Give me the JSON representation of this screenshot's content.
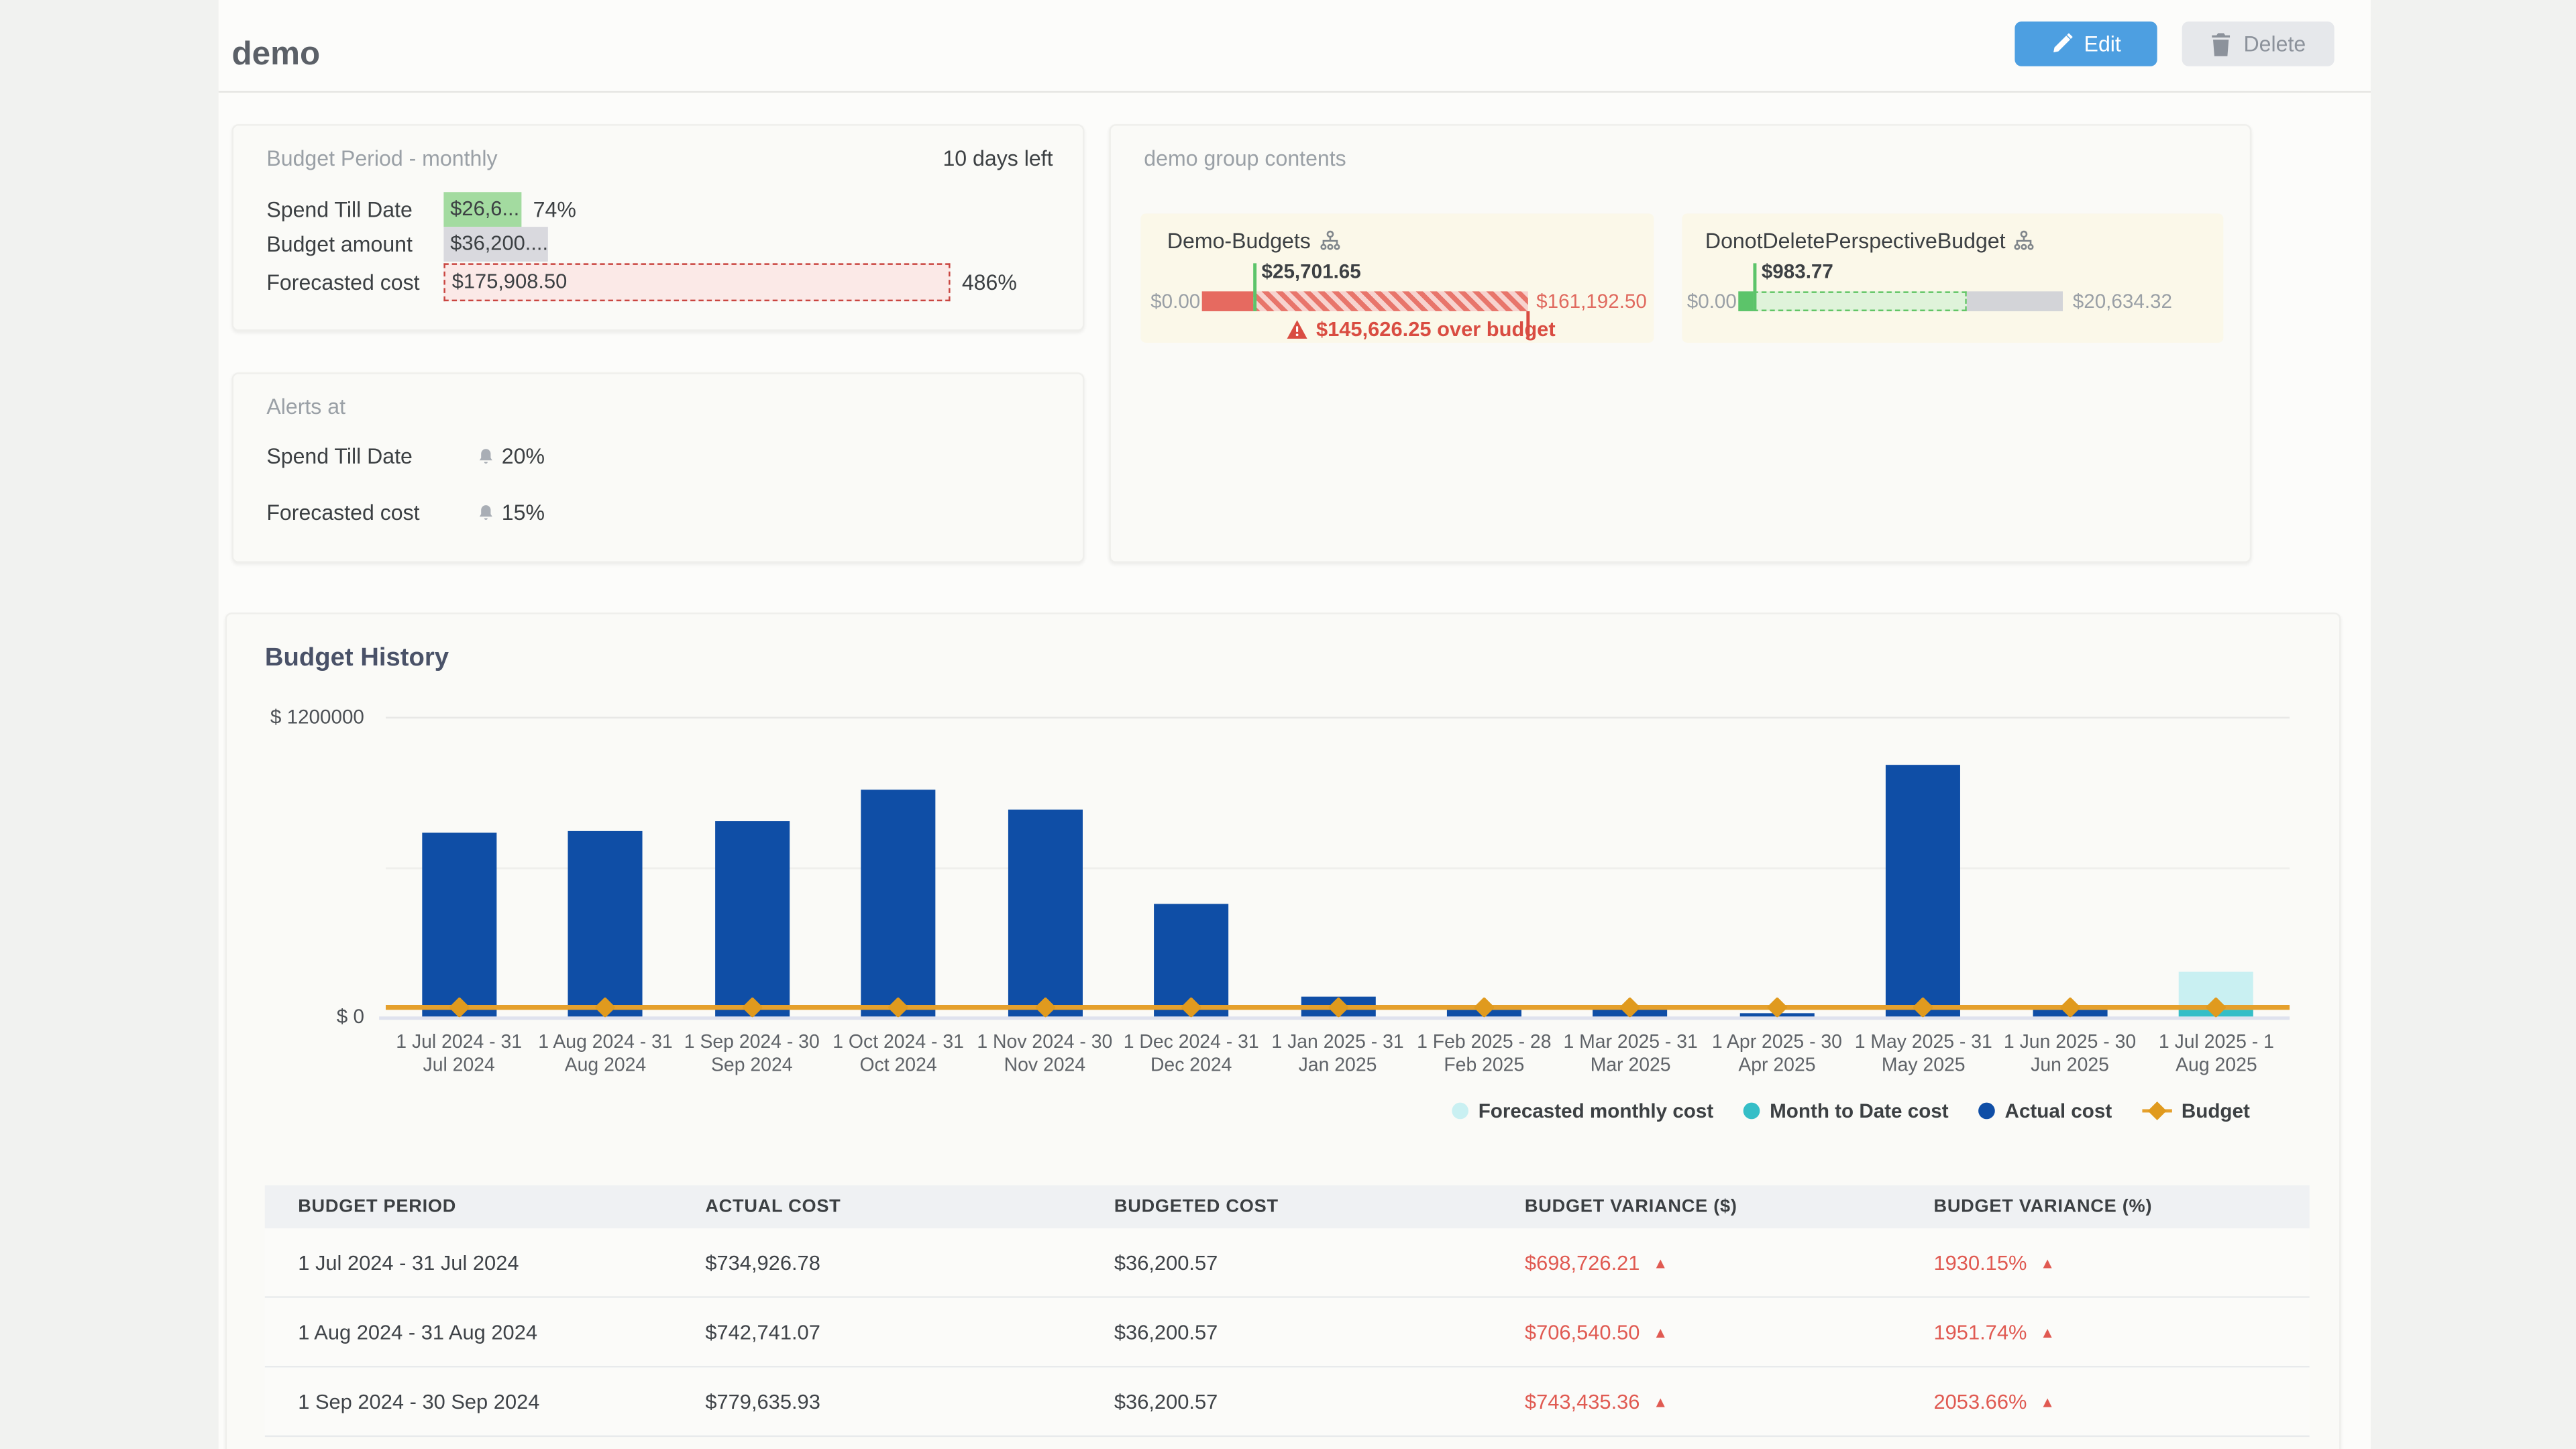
{
  "header": {
    "title": "demo",
    "edit_label": "Edit",
    "delete_label": "Delete"
  },
  "colors": {
    "accent_blue": "#4d9fe1",
    "bar_blue": "#0f4ea6",
    "budget_orange": "#e5a02c",
    "forecast_cyan": "#c9f0f2",
    "mtd_teal": "#35bec7",
    "alert_red": "#d94c41",
    "over_red": "#e66a60",
    "ok_green": "#5cc46a",
    "chip_green": "#a3dba0",
    "chip_gray": "#d9d9de",
    "variance_red": "#e05a52"
  },
  "budget_period_card": {
    "title": "Budget Period - monthly",
    "days_left": "10 days left",
    "rows": [
      {
        "label": "Spend Till Date",
        "value": "$26,6...",
        "pct": 74,
        "pct_display": "74%"
      },
      {
        "label": "Budget amount",
        "value": "$36,200....",
        "pct": 100,
        "pct_display": ""
      },
      {
        "label": "Forecasted cost",
        "value": "$175,908.50",
        "pct": 486,
        "pct_display": "486%"
      }
    ]
  },
  "alerts_card": {
    "title": "Alerts at",
    "rows": [
      {
        "label": "Spend Till Date",
        "value": "20%"
      },
      {
        "label": "Forecasted cost",
        "value": "15%"
      }
    ]
  },
  "group_card": {
    "title": "demo group contents",
    "budgets": [
      {
        "name": "Demo-Budgets",
        "amount_label": "$25,701.65",
        "min_label": "$0.00",
        "max_label": "$161,192.50",
        "over_label": "$145,626.25 over budget",
        "actual": 25701.65,
        "total": 161192.5,
        "state": "over"
      },
      {
        "name": "DonotDeletePerspectiveBudget",
        "amount_label": "$983.77",
        "min_label": "$0.00",
        "max_label": "$20,634.32",
        "actual": 983.77,
        "forecast": 14500,
        "total": 20634.32,
        "state": "under"
      }
    ]
  },
  "history": {
    "title": "Budget History",
    "y_top_label": "$ 1200000",
    "y_zero_label": "$ 0",
    "legend": [
      {
        "label": "Forecasted monthly cost",
        "type": "dot",
        "color": "#c9f0f2"
      },
      {
        "label": "Month to Date cost",
        "type": "dot",
        "color": "#35bec7"
      },
      {
        "label": "Actual cost",
        "type": "dot",
        "color": "#0f4ea6"
      },
      {
        "label": "Budget",
        "type": "diamond",
        "color": "#e5a02c"
      }
    ]
  },
  "chart_data": {
    "type": "bar",
    "title": "Budget History",
    "ylabel": "$",
    "ylim": [
      0,
      1200000
    ],
    "gridlines": [
      600000,
      1200000
    ],
    "legend_position": "bottom-right",
    "categories": [
      "1 Jul 2024 - 31 Jul 2024",
      "1 Aug 2024 - 31 Aug 2024",
      "1 Sep 2024 - 30 Sep 2024",
      "1 Oct 2024 - 31 Oct 2024",
      "1 Nov 2024 - 30 Nov 2024",
      "1 Dec 2024 - 31 Dec 2024",
      "1 Jan 2025 - 31 Jan 2025",
      "1 Feb 2025 - 28 Feb 2025",
      "1 Mar 2025 - 31 Mar 2025",
      "1 Apr 2025 - 30 Apr 2025",
      "1 May 2025 - 31 May 2025",
      "1 Jun 2025 - 30 Jun 2025",
      "1 Jul 2025 - 1 Aug 2025"
    ],
    "tick_lines": [
      [
        "1 Jul 2024 - 31",
        "Jul 2024"
      ],
      [
        "1 Aug 2024 - 31",
        "Aug 2024"
      ],
      [
        "1 Sep 2024 - 30",
        "Sep 2024"
      ],
      [
        "1 Oct 2024 - 31",
        "Oct 2024"
      ],
      [
        "1 Nov 2024 - 30",
        "Nov 2024"
      ],
      [
        "1 Dec 2024 - 31",
        "Dec 2024"
      ],
      [
        "1 Jan 2025 - 31",
        "Jan 2025"
      ],
      [
        "1 Feb 2025 - 28",
        "Feb 2025"
      ],
      [
        "1 Mar 2025 - 31",
        "Mar 2025"
      ],
      [
        "1 Apr 2025 - 30",
        "Apr 2025"
      ],
      [
        "1 May 2025 - 31",
        "May 2025"
      ],
      [
        "1 Jun 2025 - 30",
        "Jun 2025"
      ],
      [
        "1 Jul 2025 - 1",
        "Aug 2025"
      ]
    ],
    "series": [
      {
        "name": "Actual cost",
        "color": "#0f4ea6",
        "values": [
          734926.78,
          742741.07,
          779635.93,
          905000,
          830000,
          450000,
          78000,
          27000,
          40000,
          12000,
          1008000,
          29000,
          0
        ]
      },
      {
        "name": "Forecasted monthly cost",
        "color": "#c9f0f2",
        "values": [
          0,
          0,
          0,
          0,
          0,
          0,
          0,
          0,
          0,
          0,
          0,
          0,
          175908.5
        ]
      },
      {
        "name": "Month to Date cost",
        "color": "#35bec7",
        "values": [
          0,
          0,
          0,
          0,
          0,
          0,
          0,
          0,
          0,
          0,
          0,
          0,
          26650
        ]
      },
      {
        "name": "Budget",
        "type": "line",
        "color": "#e5a02c",
        "values": [
          36200.57,
          36200.57,
          36200.57,
          36200.57,
          36200.57,
          36200.57,
          36200.57,
          36200.57,
          36200.57,
          36200.57,
          36200.57,
          36200.57,
          36200.57
        ]
      }
    ]
  },
  "table": {
    "headers": [
      "BUDGET PERIOD",
      "ACTUAL COST",
      "BUDGETED COST",
      "BUDGET VARIANCE ($)",
      "BUDGET VARIANCE (%)"
    ],
    "rows": [
      {
        "period": "1 Jul 2024 - 31 Jul 2024",
        "actual": "$734,926.78",
        "budgeted": "$36,200.57",
        "variance_usd": "$698,726.21",
        "variance_pct": "1930.15%"
      },
      {
        "period": "1 Aug 2024 - 31 Aug 2024",
        "actual": "$742,741.07",
        "budgeted": "$36,200.57",
        "variance_usd": "$706,540.50",
        "variance_pct": "1951.74%"
      },
      {
        "period": "1 Sep 2024 - 30 Sep 2024",
        "actual": "$779,635.93",
        "budgeted": "$36,200.57",
        "variance_usd": "$743,435.36",
        "variance_pct": "2053.66%"
      }
    ]
  }
}
